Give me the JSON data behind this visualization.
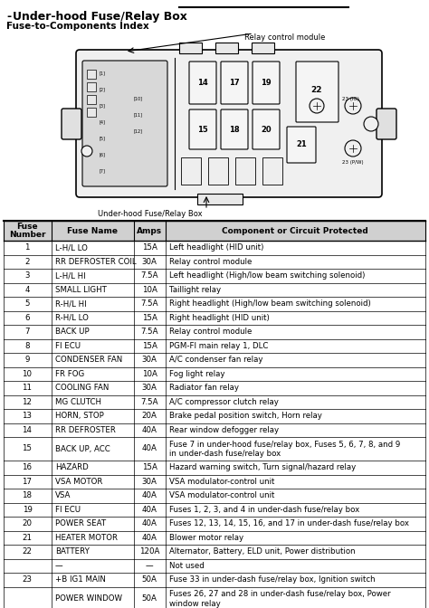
{
  "title": "Under-hood Fuse/Relay Box",
  "subtitle": "Fuse-to-Components Index",
  "diagram_label": "Under-hood Fuse/Relay Box",
  "relay_label": "Relay control module",
  "col_headers": [
    "Fuse\nNumber",
    "Fuse Name",
    "Amps",
    "Component or Circuit Protected"
  ],
  "rows": [
    [
      "1",
      "L-H/L LO",
      "15A",
      "Left headlight (HID unit)"
    ],
    [
      "2",
      "RR DEFROSTER COIL",
      "30A",
      "Relay control module"
    ],
    [
      "3",
      "L-H/L HI",
      "7.5A",
      "Left headlight (High/low beam switching solenoid)"
    ],
    [
      "4",
      "SMALL LIGHT",
      "10A",
      "Taillight relay"
    ],
    [
      "5",
      "R-H/L HI",
      "7.5A",
      "Right headlight (High/low beam switching solenoid)"
    ],
    [
      "6",
      "R-H/L LO",
      "15A",
      "Right headlight (HID unit)"
    ],
    [
      "7",
      "BACK UP",
      "7.5A",
      "Relay control module"
    ],
    [
      "8",
      "FI ECU",
      "15A",
      "PGM-FI main relay 1, DLC"
    ],
    [
      "9",
      "CONDENSER FAN",
      "30A",
      "A/C condenser fan relay"
    ],
    [
      "10",
      "FR FOG",
      "10A",
      "Fog light relay"
    ],
    [
      "11",
      "COOLING FAN",
      "30A",
      "Radiator fan relay"
    ],
    [
      "12",
      "MG CLUTCH",
      "7.5A",
      "A/C compressor clutch relay"
    ],
    [
      "13",
      "HORN, STOP",
      "20A",
      "Brake pedal position switch, Horn relay"
    ],
    [
      "14",
      "RR DEFROSTER",
      "40A",
      "Rear window defogger relay"
    ],
    [
      "15",
      "BACK UP, ACC",
      "40A",
      "Fuse 7 in under-hood fuse/relay box, Fuses 5, 6, 7, 8, and 9\nin under-dash fuse/relay box"
    ],
    [
      "16",
      "HAZARD",
      "15A",
      "Hazard warning switch, Turn signal/hazard relay"
    ],
    [
      "17",
      "VSA MOTOR",
      "30A",
      "VSA modulator-control unit"
    ],
    [
      "18",
      "VSA",
      "40A",
      "VSA modulator-control unit"
    ],
    [
      "19",
      "FI ECU",
      "40A",
      "Fuses 1, 2, 3, and 4 in under-dash fuse/relay box"
    ],
    [
      "20",
      "POWER SEAT",
      "40A",
      "Fuses 12, 13, 14, 15, 16, and 17 in under-dash fuse/relay box"
    ],
    [
      "21",
      "HEATER MOTOR",
      "40A",
      "Blower motor relay"
    ],
    [
      "22",
      "BATTERY",
      "120A",
      "Alternator, Battery, ELD unit, Power distribution"
    ],
    [
      "",
      "—",
      "—",
      "Not used"
    ],
    [
      "23",
      "+B IG1 MAIN",
      "50A",
      "Fuse 33 in under-dash fuse/relay box, Ignition switch"
    ],
    [
      "",
      "POWER WINDOW",
      "50A",
      "Fuses 26, 27 and 28 in under-dash fuse/relay box, Power\nwindow relay"
    ]
  ],
  "bg_color": "#ffffff",
  "line_color": "#000000",
  "text_color": "#000000"
}
